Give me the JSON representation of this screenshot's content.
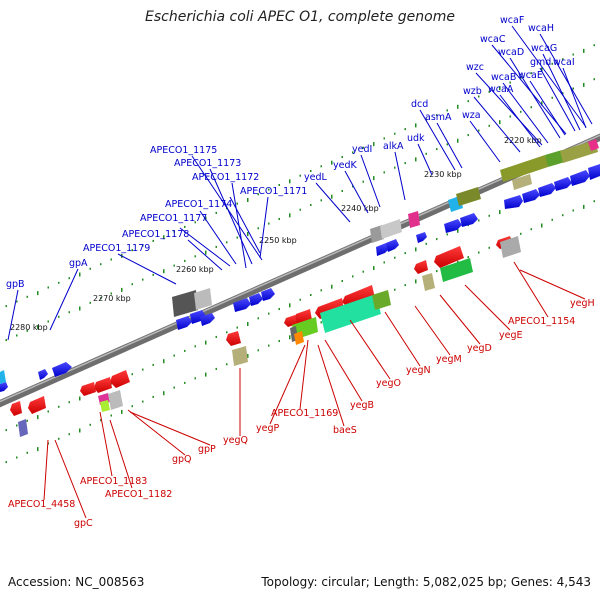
{
  "title": "Escherichia coli APEC O1, complete genome",
  "footer": {
    "accession": "Accession: NC_008563",
    "summary": "Topology: circular; Length: 5,082,025 bp; Genes: 4,543"
  },
  "colors": {
    "forward_genes": "#0000ee",
    "reverse_genes": "#ee0000",
    "forward_label": "#0000cc",
    "reverse_label": "#cc0000",
    "backbone": "#6e6e6e",
    "tick_dots": "#228b22"
  },
  "kbp_ticks": [
    "2220 kbp",
    "2230 kbp",
    "2240 kbp",
    "2250 kbp",
    "2260 kbp",
    "2270 kbp",
    "2280 kbp"
  ],
  "forward_labels": [
    "wcaF",
    "wcaH",
    "wcaC",
    "wcaG",
    "wcaD",
    "gmd",
    "wcaI",
    "wzc",
    "wcaB",
    "wcaE",
    "wzb",
    "wcaA",
    "dcd",
    "asmA",
    "wza",
    "udk",
    "alkA",
    "yedI",
    "yedK",
    "yedL",
    "APECO1_1175",
    "APECO1_1173",
    "APECO1_1172",
    "APECO1_1174",
    "APECO1_1171",
    "APECO1_1177",
    "APECO1_1178",
    "APECO1_1179",
    "gpA",
    "gpB"
  ],
  "reverse_labels": [
    "yegH",
    "APECO1_1154",
    "yegE",
    "yegD",
    "yegM",
    "yegN",
    "yegO",
    "yegB",
    "baeS",
    "APECO1_1169",
    "yegP",
    "yegQ",
    "gpP",
    "gpQ",
    "APECO1_1183",
    "APECO1_1182",
    "APECO1_4458",
    "gpC"
  ]
}
